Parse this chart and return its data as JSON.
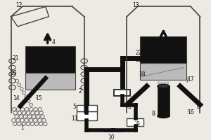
{
  "bg_color": "#ede9e3",
  "line_color": "#444444",
  "dark_color": "#111111",
  "gray_color": "#888888",
  "light_gray": "#bbbbbb",
  "white": "#ffffff",
  "fig_w": 3.0,
  "fig_h": 2.0,
  "dpi": 100
}
